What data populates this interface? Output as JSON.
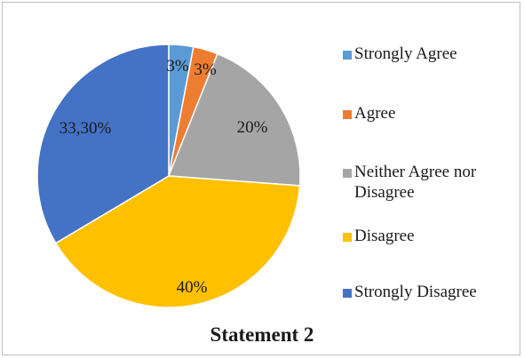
{
  "chart_data": {
    "type": "pie",
    "title": "Statement 2",
    "start_angle_deg": 0,
    "direction": "clockwise",
    "slices": [
      {
        "label": "Strongly Agree",
        "value": 3,
        "display": "3%",
        "color": "#5b9bd5"
      },
      {
        "label": "Agree",
        "value": 3,
        "display": "3%",
        "color": "#ed7d31"
      },
      {
        "label": "Neither Agree nor Disagree",
        "value": 20,
        "display": "20%",
        "color": "#a5a5a5"
      },
      {
        "label": "Disagree",
        "value": 40,
        "display": "40%",
        "color": "#ffc000"
      },
      {
        "label": "Strongly Disagree",
        "value": 33.3,
        "display": "33,30%",
        "color": "#4472c4"
      }
    ],
    "legend_position": "right"
  }
}
